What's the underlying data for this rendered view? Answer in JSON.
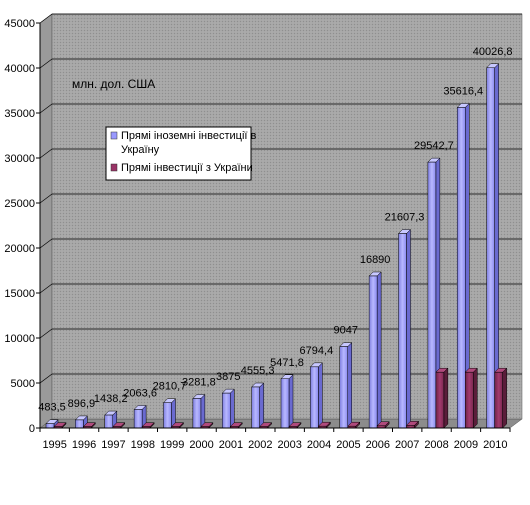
{
  "chart_data": {
    "type": "bar",
    "title": "",
    "xlabel": "",
    "ylabel": "",
    "unit_note": "млн. дол. США",
    "categories": [
      "1995",
      "1996",
      "1997",
      "1998",
      "1999",
      "2000",
      "2001",
      "2002",
      "2003",
      "2004",
      "2005",
      "2006",
      "2007",
      "2008",
      "2009",
      "2010"
    ],
    "ylim": [
      0,
      45000
    ],
    "yticks": [
      "0",
      "5000",
      "10000",
      "15000",
      "20000",
      "25000",
      "30000",
      "35000",
      "40000",
      "45000"
    ],
    "grid": true,
    "legend_position": "upper-left inside plot",
    "series": [
      {
        "name": "Прямі іноземні інвестиції в Україну",
        "color": "#9999ff",
        "values": [
          483.5,
          896.9,
          1438.2,
          2063.6,
          2810.7,
          3281.8,
          3875,
          4555.3,
          5471.8,
          6794.4,
          9047,
          16890,
          21607.3,
          29542.7,
          35616.4,
          40026.8
        ],
        "labels": [
          "483,5",
          "896,9",
          "1438,2",
          "2063,6",
          "2810,7",
          "3281,8",
          "3875",
          "4555,3",
          "5471,8",
          "6794,4",
          "9047",
          "16890",
          "21607,3",
          "29542,7",
          "35616,4",
          "40026,8"
        ]
      },
      {
        "name": "Прямі інвестиції з України",
        "color": "#993366",
        "values": [
          150,
          150,
          150,
          150,
          150,
          150,
          150,
          150,
          150,
          200,
          200,
          250,
          300,
          6200,
          6200,
          6200
        ]
      }
    ]
  }
}
